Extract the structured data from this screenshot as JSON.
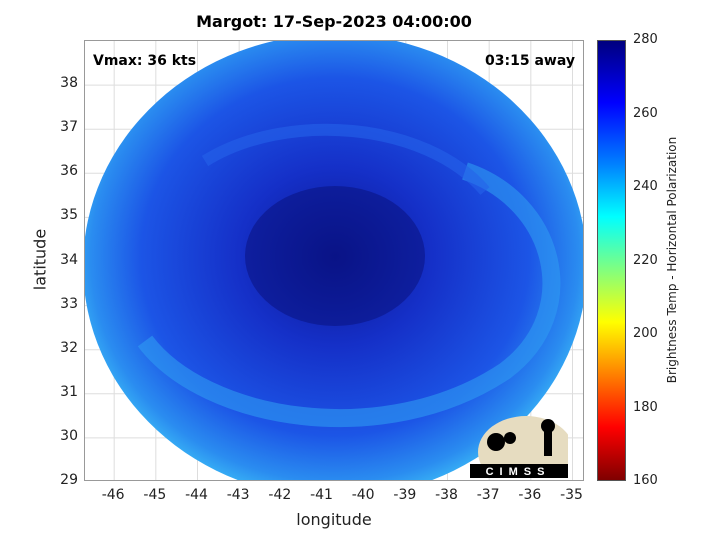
{
  "title": "Margot: 17-Sep-2023 04:00:00",
  "vmax_label": "Vmax: 36 kts",
  "away_label": "03:15 away",
  "logo_text": "CIMSS",
  "chart_data": {
    "type": "heatmap",
    "title": "Margot: 17-Sep-2023 04:00:00",
    "xlabel": "longitude",
    "ylabel": "latitude",
    "xlim": [
      -46.7,
      -34.7
    ],
    "ylim": [
      29,
      39
    ],
    "x_ticks": [
      "-46",
      "-45",
      "-44",
      "-43",
      "-42",
      "-41",
      "-40",
      "-39",
      "-38",
      "-37",
      "-36",
      "-35"
    ],
    "y_ticks": [
      "29",
      "30",
      "31",
      "32",
      "33",
      "34",
      "35",
      "36",
      "37",
      "38"
    ],
    "grid": true,
    "colorbar": {
      "label": "Brightness Temp - Horizontal Polarization",
      "range": [
        160,
        280
      ],
      "ticks": [
        "280",
        "260",
        "240",
        "220",
        "200",
        "180",
        "160"
      ],
      "colormap": "jet"
    },
    "center": {
      "lon": -40.9,
      "lat": 34.0
    },
    "features": [
      {
        "region": "disk center",
        "value": 270
      },
      {
        "region": "outer rim",
        "value": 245
      }
    ]
  },
  "colors": {
    "cold": "#0a1a9c",
    "mid": "#1a40e0",
    "rim": "#2aa8f0"
  }
}
